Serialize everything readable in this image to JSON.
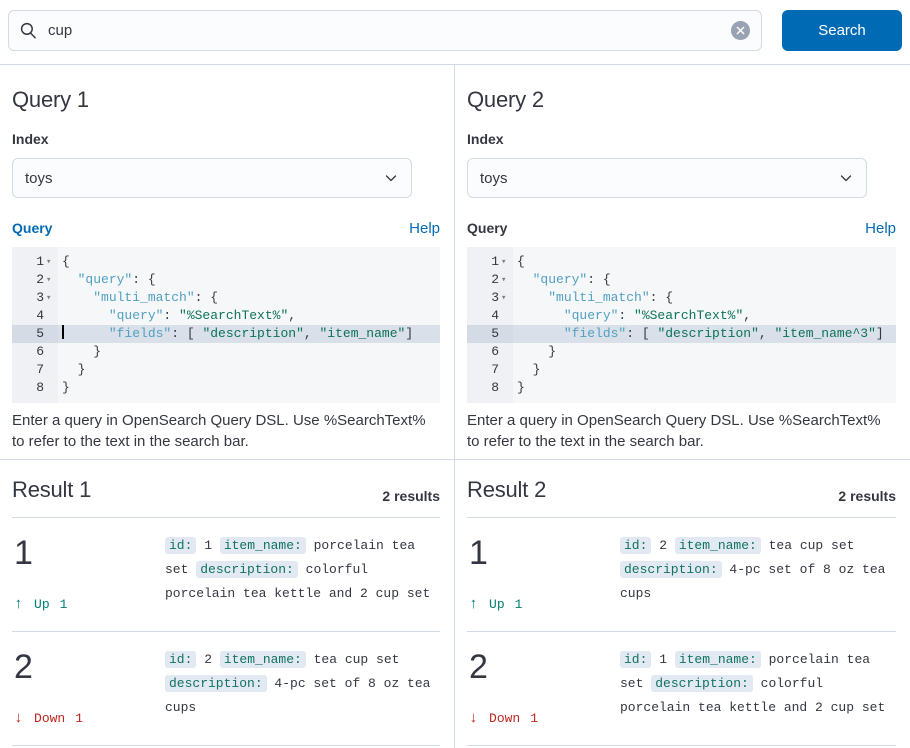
{
  "search_bar": {
    "value": "cup",
    "button_label": "Search",
    "search_icon": "magnifier-icon",
    "clear_icon": "x-in-circle-icon"
  },
  "colors": {
    "primary": "#006bb4",
    "success": "#017d73",
    "danger": "#bd271e",
    "editor_key": "#52a0c2",
    "editor_string": "#0d7257",
    "active_line": "#d9e0ea",
    "chip_bg": "#e3e9f2",
    "divider": "#d3dae6",
    "text": "#343741"
  },
  "panels": [
    {
      "title": "Query 1",
      "index_label": "Index",
      "index_value": "toys",
      "query_label": "Query",
      "query_focused": true,
      "help_label": "Help",
      "helper_text": "Enter a query in OpenSearch Query DSL. Use %SearchText% to refer to the text in the search bar.",
      "code": {
        "lines": [
          {
            "n": "1",
            "fold": true,
            "segs": [
              [
                "p",
                "{"
              ]
            ]
          },
          {
            "n": "2",
            "fold": true,
            "segs": [
              [
                "p",
                "  "
              ],
              [
                "k",
                "\"query\""
              ],
              [
                "p",
                ": {"
              ]
            ]
          },
          {
            "n": "3",
            "fold": true,
            "segs": [
              [
                "p",
                "    "
              ],
              [
                "k",
                "\"multi_match\""
              ],
              [
                "p",
                ": {"
              ]
            ]
          },
          {
            "n": "4",
            "segs": [
              [
                "p",
                "      "
              ],
              [
                "k",
                "\"query\""
              ],
              [
                "p",
                ": "
              ],
              [
                "s",
                "\"%SearchText%\""
              ],
              [
                "p",
                ","
              ]
            ]
          },
          {
            "n": "5",
            "active": true,
            "cursor": true,
            "segs": [
              [
                "p",
                "      "
              ],
              [
                "k",
                "\"fields\""
              ],
              [
                "p",
                ": [ "
              ],
              [
                "s",
                "\"description\""
              ],
              [
                "p",
                ", "
              ],
              [
                "s",
                "\"item_name\""
              ],
              [
                "p",
                "]"
              ]
            ]
          },
          {
            "n": "6",
            "segs": [
              [
                "p",
                "    }"
              ]
            ]
          },
          {
            "n": "7",
            "segs": [
              [
                "p",
                "  }"
              ]
            ]
          },
          {
            "n": "8",
            "segs": [
              [
                "p",
                "}"
              ]
            ]
          }
        ]
      }
    },
    {
      "title": "Query 2",
      "index_label": "Index",
      "index_value": "toys",
      "query_label": "Query",
      "query_focused": false,
      "help_label": "Help",
      "helper_text": "Enter a query in OpenSearch Query DSL. Use %SearchText% to refer to the text in the search bar.",
      "code": {
        "lines": [
          {
            "n": "1",
            "fold": true,
            "segs": [
              [
                "p",
                "{"
              ]
            ]
          },
          {
            "n": "2",
            "fold": true,
            "segs": [
              [
                "p",
                "  "
              ],
              [
                "k",
                "\"query\""
              ],
              [
                "p",
                ": {"
              ]
            ]
          },
          {
            "n": "3",
            "fold": true,
            "segs": [
              [
                "p",
                "    "
              ],
              [
                "k",
                "\"multi_match\""
              ],
              [
                "p",
                ": {"
              ]
            ]
          },
          {
            "n": "4",
            "segs": [
              [
                "p",
                "      "
              ],
              [
                "k",
                "\"query\""
              ],
              [
                "p",
                ": "
              ],
              [
                "s",
                "\"%SearchText%\""
              ],
              [
                "p",
                ","
              ]
            ]
          },
          {
            "n": "5",
            "active": true,
            "segs": [
              [
                "p",
                "      "
              ],
              [
                "k",
                "\"fields\""
              ],
              [
                "p",
                ": [ "
              ],
              [
                "s",
                "\"description\""
              ],
              [
                "p",
                ", "
              ],
              [
                "s",
                "\"item_name^3\""
              ],
              [
                "p",
                "]"
              ]
            ]
          },
          {
            "n": "6",
            "segs": [
              [
                "p",
                "    }"
              ]
            ]
          },
          {
            "n": "7",
            "segs": [
              [
                "p",
                "  }"
              ]
            ]
          },
          {
            "n": "8",
            "segs": [
              [
                "p",
                "}"
              ]
            ]
          }
        ]
      }
    }
  ],
  "results": [
    {
      "title": "Result 1",
      "count_label": "2 results",
      "rows": [
        {
          "rank": "1",
          "change": {
            "direction": "up",
            "arrow": "↑",
            "label": "Up",
            "value": "1"
          },
          "fields": [
            {
              "name": "id:",
              "value": "1"
            },
            {
              "name": "item_name:",
              "value": "porcelain tea set"
            },
            {
              "name": "description:",
              "value": "colorful porcelain tea kettle and 2 cup set"
            }
          ]
        },
        {
          "rank": "2",
          "change": {
            "direction": "down",
            "arrow": "↓",
            "label": "Down",
            "value": "1"
          },
          "fields": [
            {
              "name": "id:",
              "value": "2"
            },
            {
              "name": "item_name:",
              "value": "tea cup set"
            },
            {
              "name": "description:",
              "value": "4-pc set of 8 oz tea cups"
            }
          ]
        }
      ]
    },
    {
      "title": "Result 2",
      "count_label": "2 results",
      "rows": [
        {
          "rank": "1",
          "change": {
            "direction": "up",
            "arrow": "↑",
            "label": "Up",
            "value": "1"
          },
          "fields": [
            {
              "name": "id:",
              "value": "2"
            },
            {
              "name": "item_name:",
              "value": "tea cup set"
            },
            {
              "name": "description:",
              "value": "4-pc set of 8 oz tea cups"
            }
          ]
        },
        {
          "rank": "2",
          "change": {
            "direction": "down",
            "arrow": "↓",
            "label": "Down",
            "value": "1"
          },
          "fields": [
            {
              "name": "id:",
              "value": "1"
            },
            {
              "name": "item_name:",
              "value": "porcelain tea set"
            },
            {
              "name": "description:",
              "value": "colorful porcelain tea kettle and 2 cup set"
            }
          ]
        }
      ]
    }
  ]
}
